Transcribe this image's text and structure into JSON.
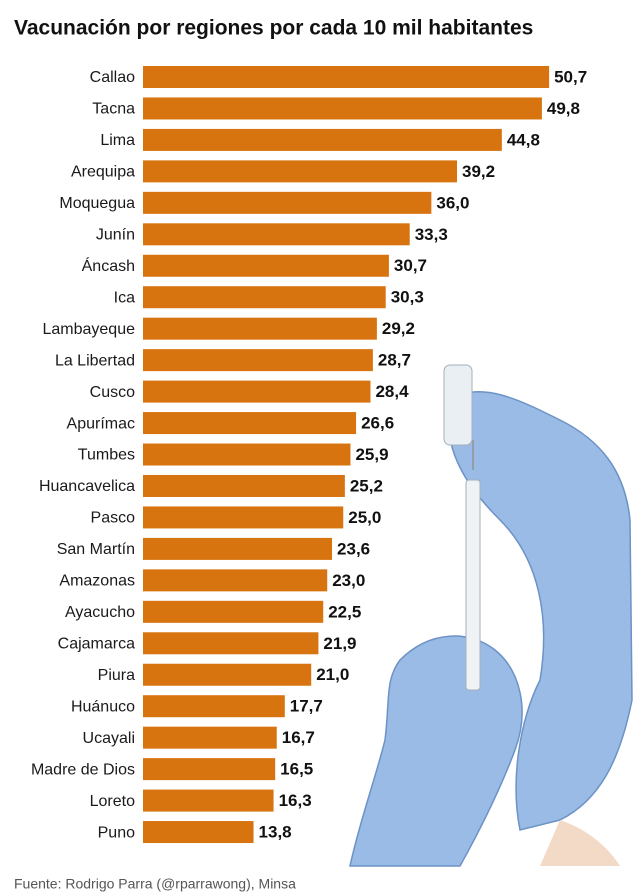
{
  "chart_data": {
    "type": "barh",
    "title": "Vacunación por regiones por cada 10 mil habitantes",
    "source": "Fuente: Rodrigo Parra (@rparrawong), Minsa",
    "categories": [
      "Callao",
      "Tacna",
      "Lima",
      "Arequipa",
      "Moquegua",
      "Junín",
      "Áncash",
      "Ica",
      "Lambayeque",
      "La Libertad",
      "Cusco",
      "Apurímac",
      "Tumbes",
      "Huancavelica",
      "Pasco",
      "San Martín",
      "Amazonas",
      "Ayacucho",
      "Cajamarca",
      "Piura",
      "Huánuco",
      "Ucayali",
      "Madre de Dios",
      "Loreto",
      "Puno"
    ],
    "values": [
      50.7,
      49.8,
      44.8,
      39.2,
      36.0,
      33.3,
      30.7,
      30.3,
      29.2,
      28.7,
      28.4,
      26.6,
      25.9,
      25.2,
      25.0,
      23.6,
      23.0,
      22.5,
      21.9,
      21.0,
      17.7,
      16.7,
      16.5,
      16.3,
      13.8
    ],
    "value_labels": [
      "50,7",
      "49,8",
      "44,8",
      "39,2",
      "36,0",
      "33,3",
      "30,7",
      "30,3",
      "29,2",
      "28,7",
      "28,4",
      "26,6",
      "25,9",
      "25,2",
      "25,0",
      "23,6",
      "23,0",
      "22,5",
      "21,9",
      "21,0",
      "17,7",
      "16,7",
      "16,5",
      "16,3",
      "13,8"
    ],
    "color": "#d8740f"
  }
}
